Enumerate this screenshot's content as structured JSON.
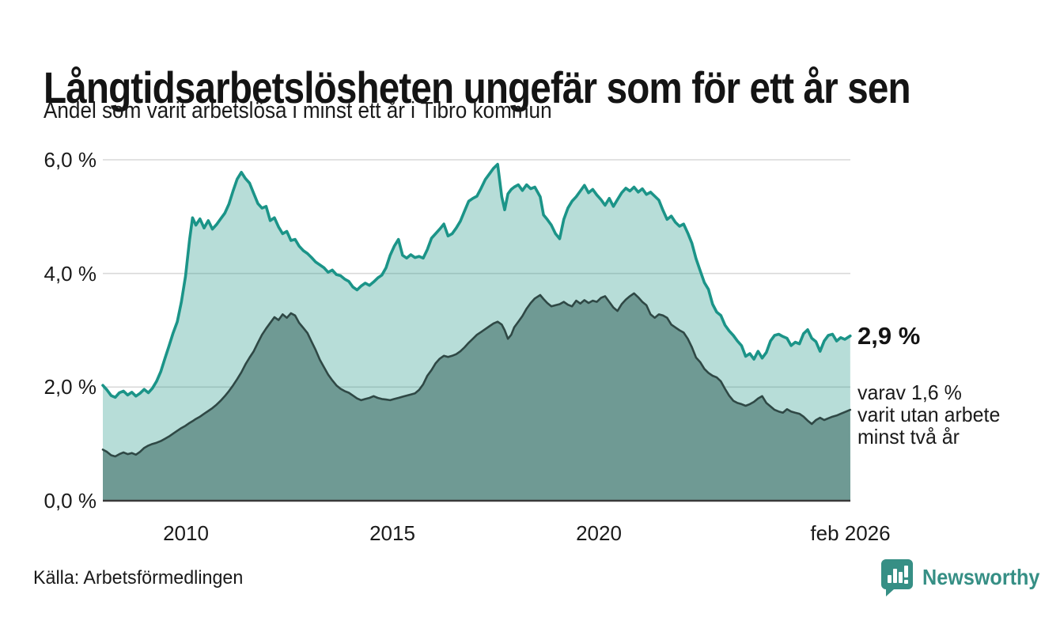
{
  "header": {
    "title": "Långtidsarbetslösheten ungefär som för ett år sen",
    "subtitle": "Andel som varit arbetslösa i minst ett år i Tibro kommun"
  },
  "footer": {
    "source": "Källa: Arbetsförmedlingen",
    "brand": "Newsworthy",
    "brand_color": "#368f85"
  },
  "chart_data": {
    "type": "area",
    "title": "Långtidsarbetsłösheten ungefär som för ett år sen",
    "subtitle_as_ylabel": "Andel som varit arbetslösa i minst ett år i Tibro kommun",
    "grid": "horizontal-only",
    "x_range": [
      2008.0,
      2026.083
    ],
    "y_range": [
      0,
      6
    ],
    "y_unit": "%",
    "colors": {
      "series1_line": "#1b9488",
      "series1_fill": "#179280",
      "series1_fill_opacity": 0.31,
      "series2_line": "#2f4845",
      "series2_fill": "#6f9a94",
      "gridline": "#d9d9d9",
      "axis_line": "#3a3a3a",
      "text": "#1a1a1a"
    },
    "y_ticks": [
      {
        "label": "0,0 %",
        "value": 0
      },
      {
        "label": "2,0 %",
        "value": 2
      },
      {
        "label": "4,0 %",
        "value": 4
      },
      {
        "label": "6,0 %",
        "value": 6
      }
    ],
    "x_ticks": [
      {
        "label": "2010",
        "year": 2010
      },
      {
        "label": "2015",
        "year": 2015
      },
      {
        "label": "2020",
        "year": 2020
      },
      {
        "label": "feb 2026",
        "year": 2026.083
      }
    ],
    "annotation": {
      "value_label": "2,9 %",
      "lines": [
        "varav 1,6 %",
        "varit utan arbete",
        "minst två år"
      ]
    },
    "series_meta": [
      {
        "name": "Andel arbetslösa minst ett år",
        "end_value": 2.9
      },
      {
        "name": "Andel arbetslösa minst två år",
        "end_value": 1.6
      }
    ],
    "columns": [
      "year",
      "minst_ett_ar_pct",
      "minst_tva_ar_pct"
    ],
    "rows": [
      [
        2008.0,
        2.03,
        0.9
      ],
      [
        2008.1,
        1.95,
        0.86
      ],
      [
        2008.2,
        1.85,
        0.8
      ],
      [
        2008.3,
        1.82,
        0.78
      ],
      [
        2008.4,
        1.9,
        0.82
      ],
      [
        2008.5,
        1.93,
        0.85
      ],
      [
        2008.6,
        1.86,
        0.82
      ],
      [
        2008.7,
        1.91,
        0.84
      ],
      [
        2008.8,
        1.84,
        0.81
      ],
      [
        2008.9,
        1.89,
        0.86
      ],
      [
        2009.0,
        1.96,
        0.93
      ],
      [
        2009.1,
        1.9,
        0.97
      ],
      [
        2009.2,
        1.98,
        1.0
      ],
      [
        2009.3,
        2.1,
        1.02
      ],
      [
        2009.4,
        2.27,
        1.05
      ],
      [
        2009.5,
        2.5,
        1.09
      ],
      [
        2009.6,
        2.72,
        1.13
      ],
      [
        2009.7,
        2.95,
        1.18
      ],
      [
        2009.8,
        3.15,
        1.23
      ],
      [
        2009.9,
        3.5,
        1.28
      ],
      [
        2010.0,
        3.95,
        1.32
      ],
      [
        2010.1,
        4.6,
        1.37
      ],
      [
        2010.17,
        4.98,
        1.4
      ],
      [
        2010.25,
        4.85,
        1.44
      ],
      [
        2010.35,
        4.96,
        1.48
      ],
      [
        2010.45,
        4.8,
        1.53
      ],
      [
        2010.55,
        4.93,
        1.58
      ],
      [
        2010.65,
        4.78,
        1.63
      ],
      [
        2010.75,
        4.86,
        1.69
      ],
      [
        2010.85,
        4.96,
        1.76
      ],
      [
        2010.95,
        5.06,
        1.84
      ],
      [
        2011.05,
        5.22,
        1.93
      ],
      [
        2011.15,
        5.45,
        2.03
      ],
      [
        2011.25,
        5.66,
        2.14
      ],
      [
        2011.35,
        5.78,
        2.26
      ],
      [
        2011.45,
        5.67,
        2.4
      ],
      [
        2011.55,
        5.59,
        2.52
      ],
      [
        2011.65,
        5.41,
        2.63
      ],
      [
        2011.75,
        5.23,
        2.78
      ],
      [
        2011.85,
        5.15,
        2.92
      ],
      [
        2011.95,
        5.18,
        3.03
      ],
      [
        2012.05,
        4.93,
        3.13
      ],
      [
        2012.15,
        4.98,
        3.23
      ],
      [
        2012.25,
        4.82,
        3.18
      ],
      [
        2012.35,
        4.7,
        3.28
      ],
      [
        2012.45,
        4.74,
        3.22
      ],
      [
        2012.55,
        4.58,
        3.3
      ],
      [
        2012.65,
        4.6,
        3.26
      ],
      [
        2012.75,
        4.48,
        3.13
      ],
      [
        2012.85,
        4.4,
        3.04
      ],
      [
        2012.95,
        4.35,
        2.95
      ],
      [
        2013.05,
        4.28,
        2.8
      ],
      [
        2013.15,
        4.2,
        2.65
      ],
      [
        2013.25,
        4.15,
        2.48
      ],
      [
        2013.35,
        4.1,
        2.35
      ],
      [
        2013.45,
        4.02,
        2.22
      ],
      [
        2013.55,
        4.06,
        2.12
      ],
      [
        2013.65,
        3.98,
        2.03
      ],
      [
        2013.75,
        3.96,
        1.97
      ],
      [
        2013.85,
        3.9,
        1.93
      ],
      [
        2013.95,
        3.86,
        1.9
      ],
      [
        2014.05,
        3.76,
        1.85
      ],
      [
        2014.15,
        3.71,
        1.8
      ],
      [
        2014.25,
        3.78,
        1.77
      ],
      [
        2014.35,
        3.83,
        1.79
      ],
      [
        2014.45,
        3.79,
        1.81
      ],
      [
        2014.55,
        3.85,
        1.84
      ],
      [
        2014.65,
        3.92,
        1.81
      ],
      [
        2014.75,
        3.97,
        1.79
      ],
      [
        2014.85,
        4.1,
        1.78
      ],
      [
        2014.95,
        4.32,
        1.77
      ],
      [
        2015.05,
        4.48,
        1.79
      ],
      [
        2015.15,
        4.6,
        1.81
      ],
      [
        2015.25,
        4.32,
        1.83
      ],
      [
        2015.35,
        4.27,
        1.85
      ],
      [
        2015.45,
        4.33,
        1.87
      ],
      [
        2015.55,
        4.28,
        1.89
      ],
      [
        2015.65,
        4.3,
        1.95
      ],
      [
        2015.75,
        4.27,
        2.05
      ],
      [
        2015.85,
        4.42,
        2.2
      ],
      [
        2015.95,
        4.62,
        2.3
      ],
      [
        2016.05,
        4.7,
        2.42
      ],
      [
        2016.15,
        4.78,
        2.5
      ],
      [
        2016.25,
        4.87,
        2.55
      ],
      [
        2016.35,
        4.66,
        2.53
      ],
      [
        2016.45,
        4.7,
        2.55
      ],
      [
        2016.55,
        4.8,
        2.58
      ],
      [
        2016.65,
        4.92,
        2.63
      ],
      [
        2016.75,
        5.1,
        2.7
      ],
      [
        2016.85,
        5.27,
        2.78
      ],
      [
        2016.95,
        5.32,
        2.85
      ],
      [
        2017.05,
        5.36,
        2.92
      ],
      [
        2017.15,
        5.5,
        2.97
      ],
      [
        2017.25,
        5.65,
        3.02
      ],
      [
        2017.35,
        5.75,
        3.07
      ],
      [
        2017.45,
        5.85,
        3.12
      ],
      [
        2017.55,
        5.92,
        3.15
      ],
      [
        2017.65,
        5.35,
        3.1
      ],
      [
        2017.72,
        5.12,
        3.0
      ],
      [
        2017.8,
        5.4,
        2.85
      ],
      [
        2017.88,
        5.48,
        2.92
      ],
      [
        2017.95,
        5.52,
        3.05
      ],
      [
        2018.05,
        5.56,
        3.15
      ],
      [
        2018.15,
        5.46,
        3.25
      ],
      [
        2018.25,
        5.56,
        3.38
      ],
      [
        2018.35,
        5.49,
        3.48
      ],
      [
        2018.45,
        5.52,
        3.56
      ],
      [
        2018.58,
        5.35,
        3.62
      ],
      [
        2018.66,
        5.03,
        3.55
      ],
      [
        2018.75,
        4.95,
        3.48
      ],
      [
        2018.85,
        4.85,
        3.42
      ],
      [
        2018.95,
        4.7,
        3.44
      ],
      [
        2019.05,
        4.61,
        3.46
      ],
      [
        2019.15,
        4.95,
        3.5
      ],
      [
        2019.25,
        5.15,
        3.45
      ],
      [
        2019.35,
        5.27,
        3.42
      ],
      [
        2019.45,
        5.35,
        3.52
      ],
      [
        2019.55,
        5.45,
        3.47
      ],
      [
        2019.65,
        5.55,
        3.53
      ],
      [
        2019.75,
        5.42,
        3.48
      ],
      [
        2019.85,
        5.48,
        3.52
      ],
      [
        2019.95,
        5.38,
        3.5
      ],
      [
        2020.05,
        5.3,
        3.57
      ],
      [
        2020.15,
        5.2,
        3.6
      ],
      [
        2020.25,
        5.32,
        3.5
      ],
      [
        2020.35,
        5.18,
        3.4
      ],
      [
        2020.45,
        5.3,
        3.34
      ],
      [
        2020.55,
        5.42,
        3.46
      ],
      [
        2020.65,
        5.5,
        3.54
      ],
      [
        2020.75,
        5.45,
        3.6
      ],
      [
        2020.85,
        5.52,
        3.65
      ],
      [
        2020.95,
        5.43,
        3.58
      ],
      [
        2021.05,
        5.49,
        3.5
      ],
      [
        2021.15,
        5.39,
        3.44
      ],
      [
        2021.25,
        5.43,
        3.28
      ],
      [
        2021.35,
        5.36,
        3.22
      ],
      [
        2021.45,
        5.29,
        3.28
      ],
      [
        2021.55,
        5.11,
        3.26
      ],
      [
        2021.65,
        4.95,
        3.22
      ],
      [
        2021.75,
        5.01,
        3.1
      ],
      [
        2021.85,
        4.9,
        3.05
      ],
      [
        2021.95,
        4.83,
        3.0
      ],
      [
        2022.05,
        4.87,
        2.96
      ],
      [
        2022.15,
        4.71,
        2.85
      ],
      [
        2022.25,
        4.53,
        2.7
      ],
      [
        2022.35,
        4.26,
        2.52
      ],
      [
        2022.45,
        4.05,
        2.44
      ],
      [
        2022.55,
        3.84,
        2.32
      ],
      [
        2022.65,
        3.72,
        2.25
      ],
      [
        2022.75,
        3.46,
        2.2
      ],
      [
        2022.85,
        3.32,
        2.17
      ],
      [
        2022.95,
        3.26,
        2.1
      ],
      [
        2023.05,
        3.09,
        1.97
      ],
      [
        2023.15,
        2.99,
        1.85
      ],
      [
        2023.25,
        2.91,
        1.76
      ],
      [
        2023.35,
        2.81,
        1.72
      ],
      [
        2023.45,
        2.73,
        1.7
      ],
      [
        2023.55,
        2.54,
        1.67
      ],
      [
        2023.65,
        2.59,
        1.7
      ],
      [
        2023.75,
        2.49,
        1.74
      ],
      [
        2023.85,
        2.63,
        1.8
      ],
      [
        2023.95,
        2.51,
        1.84
      ],
      [
        2024.05,
        2.61,
        1.72
      ],
      [
        2024.15,
        2.81,
        1.66
      ],
      [
        2024.25,
        2.91,
        1.6
      ],
      [
        2024.35,
        2.93,
        1.57
      ],
      [
        2024.45,
        2.89,
        1.55
      ],
      [
        2024.55,
        2.86,
        1.61
      ],
      [
        2024.65,
        2.73,
        1.57
      ],
      [
        2024.75,
        2.79,
        1.55
      ],
      [
        2024.85,
        2.76,
        1.53
      ],
      [
        2024.95,
        2.94,
        1.48
      ],
      [
        2025.05,
        3.01,
        1.41
      ],
      [
        2025.15,
        2.86,
        1.35
      ],
      [
        2025.25,
        2.8,
        1.42
      ],
      [
        2025.35,
        2.63,
        1.46
      ],
      [
        2025.45,
        2.81,
        1.42
      ],
      [
        2025.55,
        2.91,
        1.45
      ],
      [
        2025.65,
        2.93,
        1.48
      ],
      [
        2025.75,
        2.81,
        1.5
      ],
      [
        2025.85,
        2.87,
        1.53
      ],
      [
        2025.95,
        2.84,
        1.56
      ],
      [
        2026.08,
        2.9,
        1.6
      ]
    ]
  }
}
